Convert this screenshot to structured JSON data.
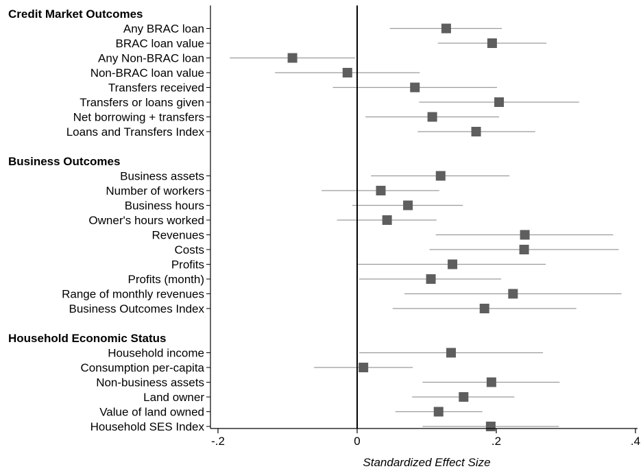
{
  "chart_data": {
    "type": "scatter",
    "xlabel": "Standardized Effect Size",
    "xlim": [
      -0.2,
      0.4
    ],
    "xticks": [
      -0.2,
      0,
      0.2,
      0.4
    ],
    "xtick_labels": [
      "-.2",
      "0",
      ".2",
      ".4"
    ],
    "reference_line": 0,
    "grid": false,
    "groups": [
      {
        "header": "Credit Market Outcomes",
        "rows": [
          {
            "label": "Any BRAC loan",
            "est": 0.128,
            "lo": 0.047,
            "hi": 0.208
          },
          {
            "label": "BRAC loan value",
            "est": 0.194,
            "lo": 0.116,
            "hi": 0.272
          },
          {
            "label": "Any Non-BRAC loan",
            "est": -0.093,
            "lo": -0.183,
            "hi": -0.003
          },
          {
            "label": "Non-BRAC loan value",
            "est": -0.014,
            "lo": -0.118,
            "hi": 0.09
          },
          {
            "label": "Transfers received",
            "est": 0.083,
            "lo": -0.035,
            "hi": 0.201
          },
          {
            "label": "Transfers or loans given",
            "est": 0.204,
            "lo": 0.089,
            "hi": 0.319
          },
          {
            "label": "Net borrowing + transfers",
            "est": 0.108,
            "lo": 0.012,
            "hi": 0.204
          },
          {
            "label": "Loans and Transfers Index",
            "est": 0.171,
            "lo": 0.087,
            "hi": 0.256
          }
        ]
      },
      {
        "header": "Business Outcomes",
        "rows": [
          {
            "label": "Business assets",
            "est": 0.12,
            "lo": 0.02,
            "hi": 0.219
          },
          {
            "label": "Number of workers",
            "est": 0.034,
            "lo": -0.051,
            "hi": 0.118
          },
          {
            "label": "Business hours",
            "est": 0.073,
            "lo": -0.007,
            "hi": 0.152
          },
          {
            "label": "Owner's hours worked",
            "est": 0.043,
            "lo": -0.029,
            "hi": 0.114
          },
          {
            "label": "Revenues",
            "est": 0.241,
            "lo": 0.113,
            "hi": 0.368
          },
          {
            "label": "Costs",
            "est": 0.24,
            "lo": 0.104,
            "hi": 0.376
          },
          {
            "label": "Profits",
            "est": 0.137,
            "lo": 0.001,
            "hi": 0.271
          },
          {
            "label": "Profits (month)",
            "est": 0.106,
            "lo": 0.003,
            "hi": 0.207
          },
          {
            "label": "Range of monthly revenues",
            "est": 0.224,
            "lo": 0.068,
            "hi": 0.38
          },
          {
            "label": "Business Outcomes Index",
            "est": 0.183,
            "lo": 0.051,
            "hi": 0.315
          }
        ]
      },
      {
        "header": "Household Economic Status",
        "rows": [
          {
            "label": "Household income",
            "est": 0.135,
            "lo": 0.003,
            "hi": 0.267
          },
          {
            "label": "Consumption per-capita",
            "est": 0.009,
            "lo": -0.062,
            "hi": 0.08
          },
          {
            "label": "Non-business assets",
            "est": 0.193,
            "lo": 0.094,
            "hi": 0.291
          },
          {
            "label": "Land owner",
            "est": 0.153,
            "lo": 0.079,
            "hi": 0.226
          },
          {
            "label": "Value of land owned",
            "est": 0.117,
            "lo": 0.055,
            "hi": 0.18
          },
          {
            "label": "Household SES Index",
            "est": 0.192,
            "lo": 0.094,
            "hi": 0.29
          }
        ]
      }
    ]
  }
}
